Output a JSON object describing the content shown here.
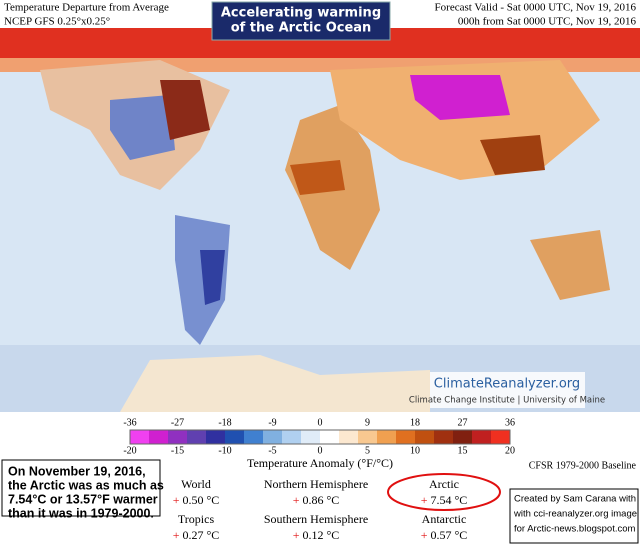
{
  "header": {
    "left": [
      "Temperature Departure from Average",
      "NCEP GFS 0.25°x0.25°"
    ],
    "center": [
      "Accelerating warming",
      "of the Arctic Ocean"
    ],
    "right": [
      "Forecast Valid - Sat 0000 UTC, Nov 19, 2016",
      "000h from Sat 0000 UTC, Nov 19, 2016"
    ]
  },
  "logo": {
    "name": "ClimateReanalyzer.org",
    "org": "Climate Change Institute | University of Maine"
  },
  "colorbar": {
    "f_ticks": [
      "-36",
      "-27",
      "-18",
      "-9",
      "0",
      "9",
      "18",
      "27",
      "36"
    ],
    "c_ticks": [
      "-20",
      "-15",
      "-10",
      "-5",
      "0",
      "5",
      "10",
      "15",
      "20"
    ],
    "label": "Temperature Anomaly (°F/°C)",
    "baseline": "CFSR 1979-2000 Baseline"
  },
  "note": [
    "On November 19, 2016,",
    "the Arctic was as much as",
    "7.54°C or 13.57°F warmer",
    "than it was in 1979-2000."
  ],
  "stats": [
    {
      "name": "World",
      "sign": "+",
      "value": "0.50 °C"
    },
    {
      "name": "Tropics",
      "sign": "+",
      "value": "0.27 °C"
    },
    {
      "name": "Northern Hemisphere",
      "sign": "+",
      "value": "0.86 °C"
    },
    {
      "name": "Southern Hemisphere",
      "sign": "+",
      "value": "0.12 °C"
    },
    {
      "name": "Arctic",
      "sign": "+",
      "value": "7.54 °C"
    },
    {
      "name": "Antarctic",
      "sign": "+",
      "value": "0.57 °C"
    }
  ],
  "credit": [
    "Created by Sam Carana with",
    "with cci-reanalyzer.org image",
    "for Arctic-news.blogspot.com"
  ]
}
